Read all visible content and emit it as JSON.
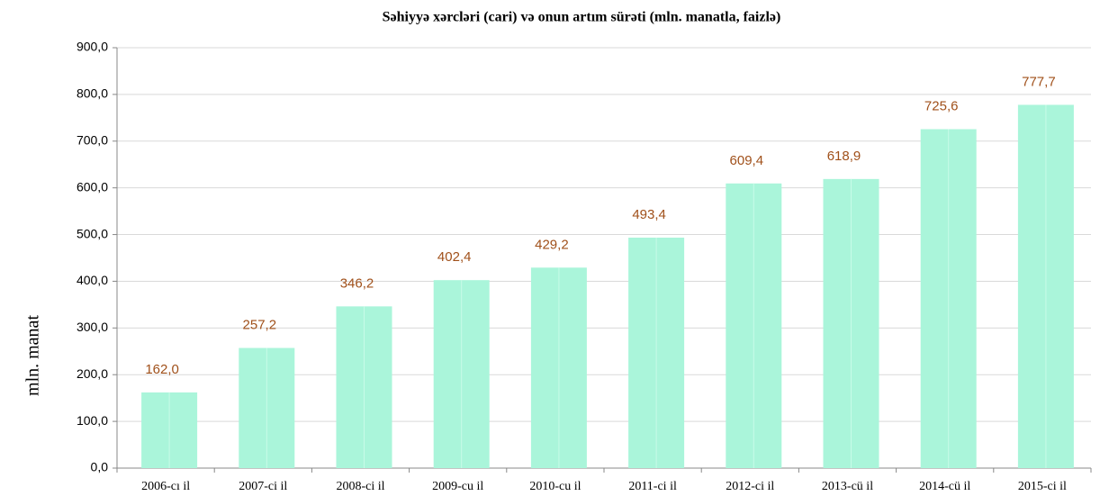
{
  "chart_data": {
    "type": "bar",
    "title": "Səhiyyə xərcləri (cari) və onun artım sürəti (mln. manatla, faizlə)",
    "y_label": "mln. manat",
    "categories": [
      "2006-cı il",
      "2007-ci il",
      "2008-ci il",
      "2009-cu il",
      "2010-cu il",
      "2011-ci il",
      "2012-ci il",
      "2013-cü il",
      "2014-cü il",
      "2015-ci il"
    ],
    "values": [
      162.0,
      257.2,
      346.2,
      402.4,
      429.2,
      493.4,
      609.4,
      618.9,
      725.6,
      777.7
    ],
    "value_labels": [
      "162,0",
      "257,2",
      "346,2",
      "402,4",
      "429,2",
      "493,4",
      "609,4",
      "618,9",
      "725,6",
      "777,7"
    ],
    "color": "#aaf5da",
    "ylim": [
      0,
      900
    ],
    "yticks": [
      {
        "value": 0,
        "label": "0,0"
      },
      {
        "value": 100,
        "label": "100,0"
      },
      {
        "value": 200,
        "label": "200,0"
      },
      {
        "value": 300,
        "label": "300,0"
      },
      {
        "value": 400,
        "label": "400,0"
      },
      {
        "value": 500,
        "label": "500,0"
      },
      {
        "value": 600,
        "label": "600,0"
      },
      {
        "value": 700,
        "label": "700,0"
      },
      {
        "value": 800,
        "label": "800,0"
      },
      {
        "value": 900,
        "label": "900,0"
      }
    ],
    "grid": true
  }
}
